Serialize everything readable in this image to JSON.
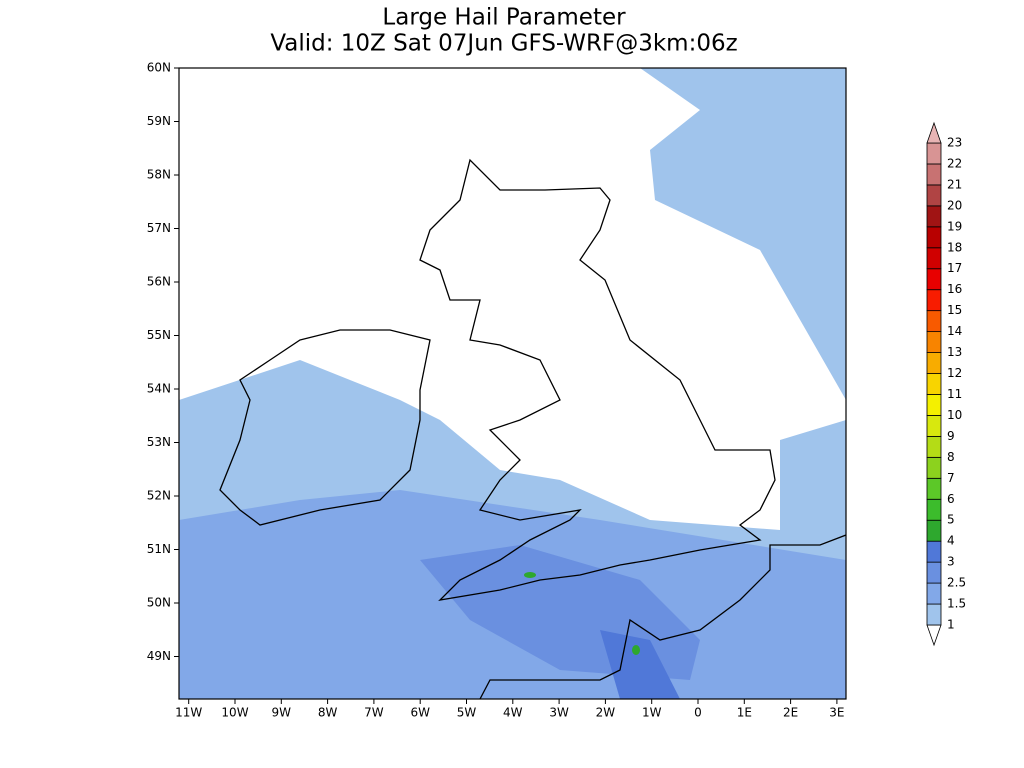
{
  "title": [
    "Large Hail Parameter",
    "Valid: 10Z Sat 07Jun GFS-WRF@3km:06z"
  ],
  "map": {
    "lat_labels": [
      "60N",
      "59N",
      "58N",
      "57N",
      "56N",
      "55N",
      "54N",
      "53N",
      "52N",
      "51N",
      "50N",
      "49N"
    ],
    "lon_labels": [
      "11W",
      "10W",
      "9W",
      "8W",
      "7W",
      "6W",
      "5W",
      "4W",
      "3W",
      "2W",
      "1W",
      "0",
      "1E",
      "2E",
      "3E"
    ]
  },
  "colorbar": {
    "labels": [
      1,
      1.5,
      2.5,
      3,
      4,
      5,
      6,
      7,
      8,
      9,
      10,
      11,
      12,
      13,
      14,
      15,
      16,
      17,
      18,
      19,
      20,
      21,
      22,
      23
    ],
    "colors": [
      "#ffffff",
      "#a0c4ec",
      "#82a8e8",
      "#6a90e0",
      "#5078d8",
      "#2ea82e",
      "#3cbc2c",
      "#5cc828",
      "#8cd21e",
      "#b4dc16",
      "#d8e80e",
      "#f4f000",
      "#f8d400",
      "#f8ac00",
      "#f88400",
      "#f85a00",
      "#f81c00",
      "#e80000",
      "#d00000",
      "#b80000",
      "#a01414",
      "#b04444",
      "#c87272",
      "#d89494",
      "#e8b4b4"
    ]
  }
}
